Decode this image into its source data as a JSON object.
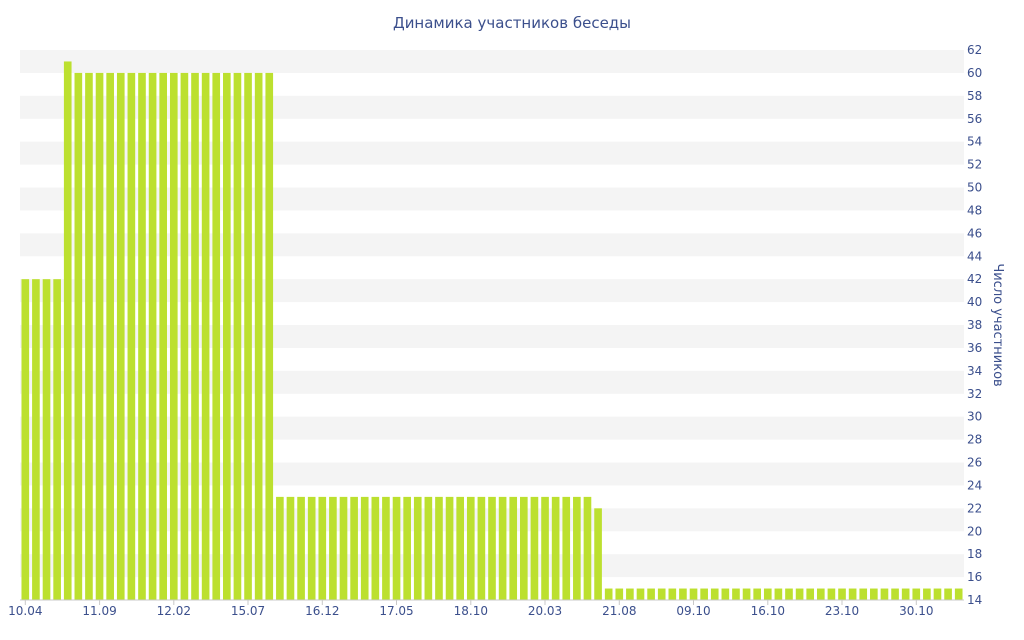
{
  "chart_data": {
    "type": "bar",
    "title": "Динамика участников беседы",
    "xlabel": "",
    "ylabel": "Число участников",
    "ylim": [
      14,
      62
    ],
    "y_ticks": [
      14,
      16,
      18,
      20,
      22,
      24,
      26,
      28,
      30,
      32,
      34,
      36,
      38,
      40,
      42,
      44,
      46,
      48,
      50,
      52,
      54,
      56,
      58,
      60,
      62
    ],
    "x_tick_labels": [
      "10.04",
      "11.09",
      "12.02",
      "15.07",
      "16.12",
      "17.05",
      "18.10",
      "20.03",
      "21.08",
      "09.10",
      "16.10",
      "23.10",
      "30.10"
    ],
    "x_tick_positions": [
      0,
      7,
      14,
      21,
      28,
      35,
      42,
      49,
      56,
      63,
      70,
      77,
      84
    ],
    "grid": "alternating horizontal bands",
    "bar_color": "#bce02f",
    "values": [
      42,
      42,
      42,
      42,
      61,
      60,
      60,
      60,
      60,
      60,
      60,
      60,
      60,
      60,
      60,
      60,
      60,
      60,
      60,
      60,
      60,
      60,
      60,
      60,
      23,
      23,
      23,
      23,
      23,
      23,
      23,
      23,
      23,
      23,
      23,
      23,
      23,
      23,
      23,
      23,
      23,
      23,
      23,
      23,
      23,
      23,
      23,
      23,
      23,
      23,
      23,
      23,
      23,
      23,
      22,
      15,
      15,
      15,
      15,
      15,
      15,
      15,
      15,
      15,
      15,
      15,
      15,
      15,
      15,
      15,
      15,
      15,
      15,
      15,
      15,
      15,
      15,
      15,
      15,
      15,
      15,
      15,
      15,
      15,
      15,
      15,
      15,
      15,
      15
    ]
  }
}
